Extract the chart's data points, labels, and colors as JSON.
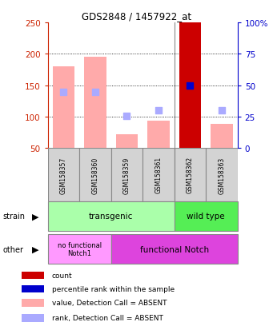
{
  "title": "GDS2848 / 1457922_at",
  "samples": [
    "GSM158357",
    "GSM158360",
    "GSM158359",
    "GSM158361",
    "GSM158362",
    "GSM158363"
  ],
  "bar_values": [
    180,
    195,
    72,
    94,
    250,
    88
  ],
  "bar_colors": [
    "#ffaaaa",
    "#ffaaaa",
    "#ffaaaa",
    "#ffaaaa",
    "#cc0000",
    "#ffaaaa"
  ],
  "rank_dots": [
    140,
    140,
    101,
    110,
    150,
    110
  ],
  "rank_colors": [
    "#aaaaff",
    "#aaaaff",
    "#aaaaff",
    "#aaaaff",
    "#0000cc",
    "#aaaaff"
  ],
  "ylim_left": [
    50,
    250
  ],
  "ylim_right": [
    0,
    100
  ],
  "yticks_left": [
    50,
    100,
    150,
    200,
    250
  ],
  "yticks_right": [
    0,
    25,
    50,
    75,
    100
  ],
  "ytick_labels_right": [
    "0",
    "25",
    "50",
    "75",
    "100%"
  ],
  "transgenic_color": "#aaffaa",
  "wildtype_color": "#55ee55",
  "no_func_color": "#ff99ff",
  "func_notch_color": "#dd44dd",
  "legend_items": [
    {
      "color": "#cc0000",
      "label": "count"
    },
    {
      "color": "#0000cc",
      "label": "percentile rank within the sample"
    },
    {
      "color": "#ffaaaa",
      "label": "value, Detection Call = ABSENT"
    },
    {
      "color": "#aaaaff",
      "label": "rank, Detection Call = ABSENT"
    }
  ],
  "left_axis_color": "#cc2200",
  "right_axis_color": "#0000cc",
  "bar_width": 0.7,
  "dot_size": 40
}
